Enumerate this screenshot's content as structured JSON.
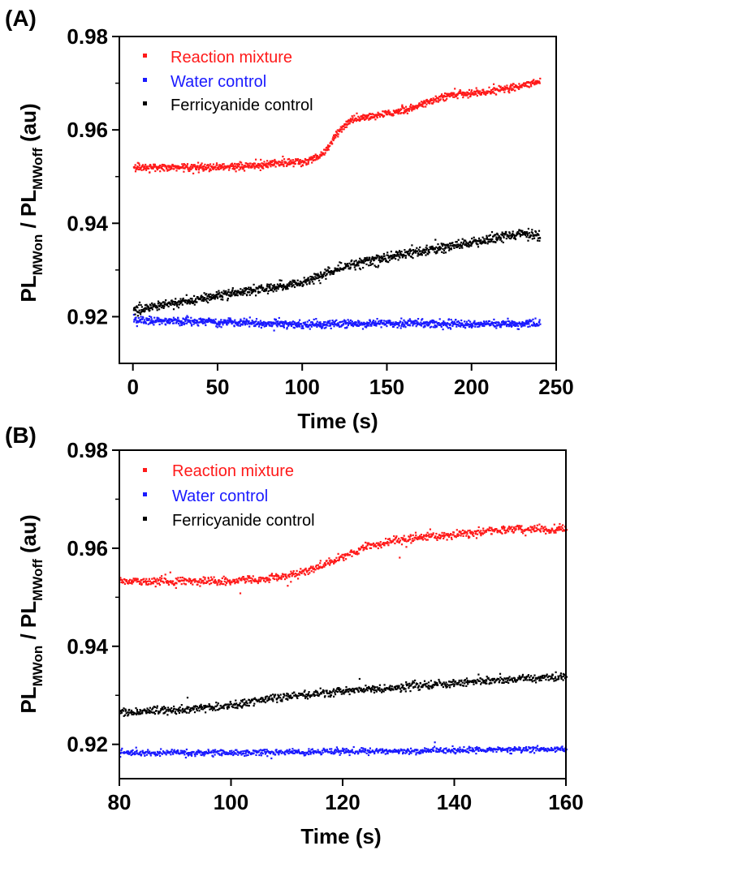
{
  "figure": {
    "caption_fragment": "",
    "panels_count": 2
  },
  "chart_data": [
    {
      "panel_label": "(A)",
      "type": "scatter",
      "xlabel": "Time  (s)",
      "ylabel_main": "PL",
      "ylabel_sub_on": "MWon",
      "ylabel_sep": " / ",
      "ylabel_sub_off": "MWoff",
      "ylabel_unit": " (au)",
      "xlim": [
        -8,
        250
      ],
      "ylim": [
        0.91,
        0.98
      ],
      "xticks": [
        0,
        50,
        100,
        150,
        200,
        250
      ],
      "xtick_labels": [
        "0",
        "50",
        "100",
        "150",
        "200",
        "250"
      ],
      "yticks": [
        0.92,
        0.94,
        0.96,
        0.98
      ],
      "ytick_labels": [
        "0.92",
        "0.94",
        "0.96",
        "0.98"
      ],
      "legend_position": "top-left",
      "series": [
        {
          "name": "Reaction mixture",
          "color": "#ff1a1a",
          "x": [
            0,
            25,
            50,
            75,
            100,
            110,
            115,
            120,
            125,
            130,
            150,
            160,
            170,
            180,
            190,
            200,
            220,
            240
          ],
          "y": [
            0.9522,
            0.9522,
            0.9522,
            0.9527,
            0.9534,
            0.9545,
            0.9565,
            0.9595,
            0.9615,
            0.9625,
            0.9637,
            0.9643,
            0.9655,
            0.967,
            0.9678,
            0.968,
            0.969,
            0.9705
          ],
          "noise": 0.0004
        },
        {
          "name": "Water control",
          "color": "#1a1aff",
          "x": [
            0,
            50,
            100,
            150,
            200,
            240
          ],
          "y": [
            0.9195,
            0.919,
            0.9185,
            0.9188,
            0.9186,
            0.9187
          ],
          "noise": 0.0004
        },
        {
          "name": "Ferricyanide control",
          "color": "#000000",
          "x": [
            0,
            50,
            100,
            120,
            150,
            175,
            200,
            230,
            240
          ],
          "y": [
            0.9215,
            0.9247,
            0.9275,
            0.9305,
            0.933,
            0.9345,
            0.936,
            0.938,
            0.9375
          ],
          "noise": 0.0005
        }
      ]
    },
    {
      "panel_label": "(B)",
      "type": "scatter",
      "xlabel": "Time  (s)",
      "ylabel_main": "PL",
      "ylabel_sub_on": "MWon",
      "ylabel_sep": " / ",
      "ylabel_sub_off": "MWoff",
      "ylabel_unit": " (au)",
      "xlim": [
        80,
        160
      ],
      "ylim": [
        0.913,
        0.98
      ],
      "xticks": [
        80,
        100,
        120,
        140,
        160
      ],
      "xtick_labels": [
        "80",
        "100",
        "120",
        "140",
        "160"
      ],
      "yticks": [
        0.92,
        0.94,
        0.96,
        0.98
      ],
      "ytick_labels": [
        "0.92",
        "0.94",
        "0.96",
        "0.98"
      ],
      "legend_position": "top-left",
      "series": [
        {
          "name": "Reaction mixture",
          "color": "#ff1a1a",
          "x": [
            80,
            90,
            100,
            105,
            110,
            115,
            120,
            125,
            130,
            140,
            150,
            160
          ],
          "y": [
            0.9535,
            0.9535,
            0.9535,
            0.9538,
            0.9545,
            0.956,
            0.9585,
            0.9608,
            0.962,
            0.963,
            0.964,
            0.964
          ],
          "noise": 0.0004
        },
        {
          "name": "Water control",
          "color": "#1a1aff",
          "x": [
            80,
            100,
            120,
            140,
            160
          ],
          "y": [
            0.9185,
            0.9185,
            0.9187,
            0.919,
            0.9192
          ],
          "noise": 0.0003
        },
        {
          "name": "Ferricyanide control",
          "color": "#000000",
          "x": [
            80,
            90,
            100,
            110,
            120,
            130,
            140,
            150,
            160
          ],
          "y": [
            0.9268,
            0.9272,
            0.9282,
            0.93,
            0.931,
            0.9318,
            0.9328,
            0.9335,
            0.934
          ],
          "noise": 0.0004
        }
      ]
    }
  ]
}
